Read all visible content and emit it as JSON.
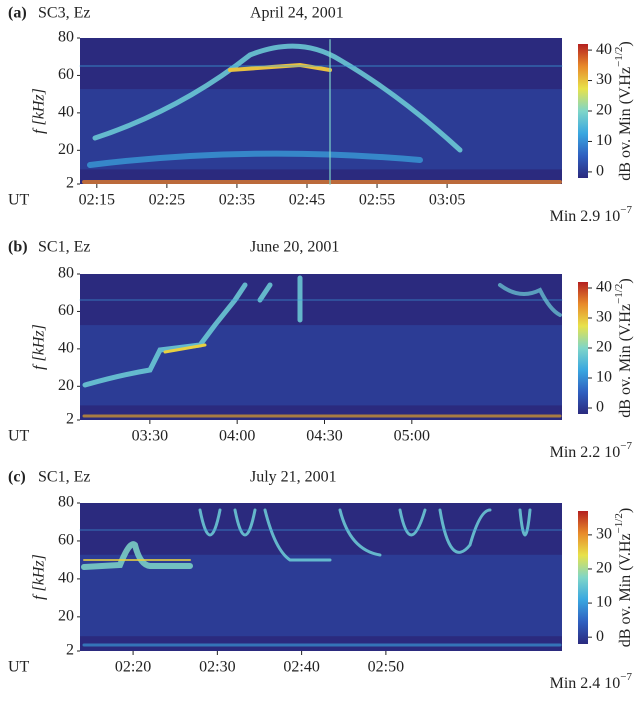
{
  "chart_data": [
    {
      "type": "spectrogram",
      "panel": "(a)",
      "title": "SC3, Ez",
      "date": "April 24, 2001",
      "ylabel": "f [kHz]",
      "xprefix": "UT",
      "xlim": [
        132.6,
        201.4
      ],
      "xticks": [
        {
          "value": 135,
          "label": "02:15"
        },
        {
          "value": 145,
          "label": "02:25"
        },
        {
          "value": 155,
          "label": "02:35"
        },
        {
          "value": 165,
          "label": "02:45"
        },
        {
          "value": 175,
          "label": "02:55"
        },
        {
          "value": 185,
          "label": "03:05"
        }
      ],
      "ylim": [
        2,
        80
      ],
      "yticks": [
        2,
        20,
        40,
        60,
        80
      ],
      "clim": [
        -2,
        42
      ],
      "cticks": [
        0,
        10,
        20,
        30,
        40
      ],
      "clabel": "dB ov. Min (V.Hz",
      "clabel_sup": "−1/2",
      "clabel_end": ")",
      "min_label": "Min 2.9 10",
      "min_sup": "−7",
      "colormap": [
        "#2b2a7e",
        "#2f5fc0",
        "#3aa7e0",
        "#7fd6c8",
        "#e8e24a",
        "#e88a2a",
        "#b42020"
      ]
    },
    {
      "type": "spectrogram",
      "panel": "(b)",
      "title": "SC1, Ez",
      "date": "June 20, 2001",
      "ylabel": "f [kHz]",
      "xprefix": "UT",
      "xlim": [
        186,
        351.6
      ],
      "xticks": [
        {
          "value": 210,
          "label": "03:30"
        },
        {
          "value": 240,
          "label": "04:00"
        },
        {
          "value": 270,
          "label": "04:30"
        },
        {
          "value": 300,
          "label": "05:00"
        }
      ],
      "ylim": [
        2,
        80
      ],
      "yticks": [
        2,
        20,
        40,
        60,
        80
      ],
      "clim": [
        -2,
        42
      ],
      "cticks": [
        0,
        10,
        20,
        30,
        40
      ],
      "clabel": "dB ov. Min (V.Hz",
      "clabel_sup": "−1/2",
      "clabel_end": ")",
      "min_label": "Min 2.2 10",
      "min_sup": "−7",
      "colormap": [
        "#2b2a7e",
        "#2f5fc0",
        "#3aa7e0",
        "#7fd6c8",
        "#e8e24a",
        "#e88a2a",
        "#b42020"
      ]
    },
    {
      "type": "spectrogram",
      "panel": "(c)",
      "title": "SC1, Ez",
      "date": "July 21, 2001",
      "ylabel": "f [kHz]",
      "xprefix": "UT",
      "xlim": [
        133.7,
        190.9
      ],
      "xticks": [
        {
          "value": 140,
          "label": "02:20"
        },
        {
          "value": 150,
          "label": "02:30"
        },
        {
          "value": 160,
          "label": "02:40"
        },
        {
          "value": 170,
          "label": "02:50"
        }
      ],
      "ylim": [
        2,
        80
      ],
      "yticks": [
        2,
        20,
        40,
        60,
        80
      ],
      "clim": [
        -2,
        37
      ],
      "cticks": [
        0,
        10,
        20,
        30
      ],
      "clabel": "dB ov. Min (V.Hz",
      "clabel_sup": "−1/2",
      "clabel_end": ")",
      "min_label": "Min 2.4 10",
      "min_sup": "−7",
      "colormap": [
        "#2b2a7e",
        "#2f5fc0",
        "#3aa7e0",
        "#7fd6c8",
        "#e8e24a",
        "#e88a2a",
        "#b42020"
      ]
    }
  ]
}
